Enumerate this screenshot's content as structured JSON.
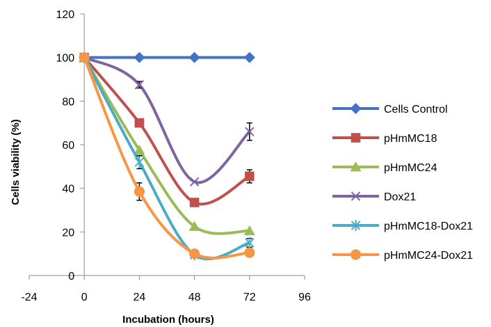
{
  "chart_data": {
    "type": "line",
    "title": "",
    "xlabel": "Incubation (hours)",
    "ylabel": "Cells viability (%)",
    "xlim": [
      -24,
      96
    ],
    "ylim": [
      0,
      120
    ],
    "xticks": [
      -24,
      0,
      24,
      48,
      72,
      96
    ],
    "yticks": [
      0,
      20,
      40,
      60,
      80,
      100,
      120
    ],
    "grid": false,
    "smooth": true,
    "legend_position": "right",
    "x": [
      0,
      24,
      48,
      72
    ],
    "series": [
      {
        "name": "Cells Control",
        "color": "#4472C4",
        "marker": "diamond",
        "values": [
          100,
          100,
          100,
          100
        ],
        "errors": [
          0,
          0,
          0,
          0
        ]
      },
      {
        "name": "pHmMC18",
        "color": "#C0504D",
        "marker": "square",
        "values": [
          100,
          70,
          33.5,
          45.5
        ],
        "errors": [
          0,
          0,
          0,
          3
        ]
      },
      {
        "name": "pHmMC24",
        "color": "#9BBB59",
        "marker": "triangle",
        "values": [
          100,
          57.5,
          22.5,
          20.5
        ],
        "errors": [
          0,
          0,
          0,
          0
        ]
      },
      {
        "name": "Dox21",
        "color": "#8064A2",
        "marker": "x",
        "values": [
          100,
          87.5,
          43,
          66
        ],
        "errors": [
          0,
          1.5,
          0,
          4
        ]
      },
      {
        "name": "pHmMC18-Dox21",
        "color": "#4BACC6",
        "marker": "star",
        "values": [
          100,
          52,
          9.5,
          15
        ],
        "errors": [
          0,
          3,
          0,
          2
        ]
      },
      {
        "name": "pHmMC24-Dox21",
        "color": "#F79646",
        "marker": "circle",
        "values": [
          100,
          38.5,
          10,
          10.5
        ],
        "errors": [
          0,
          4,
          0,
          0
        ]
      }
    ]
  }
}
